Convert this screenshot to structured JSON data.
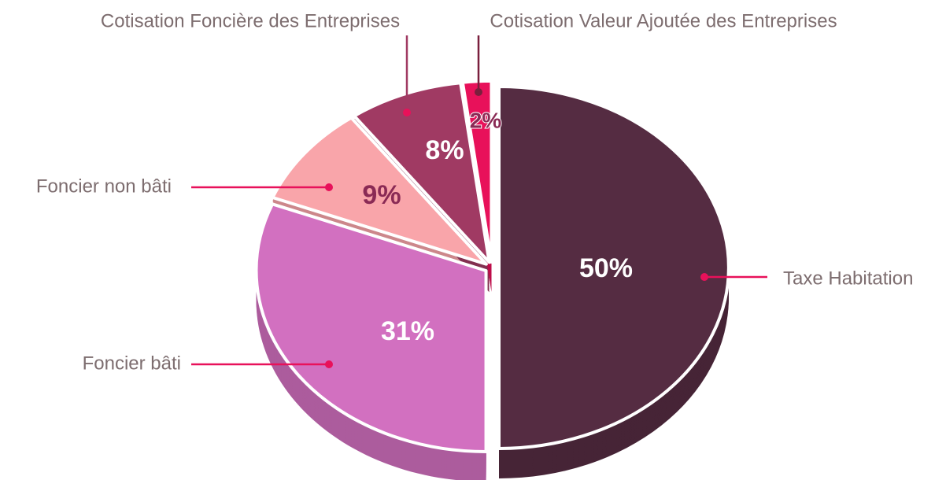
{
  "chart_data": {
    "type": "pie",
    "categories": [
      "Taxe Habitation",
      "Foncier bâti",
      "Foncier non bâti",
      "Cotisation Foncière des Entreprises",
      "Cotisation Valeur Ajoutée des Entreprises"
    ],
    "values": [
      50,
      31,
      9,
      8,
      2
    ],
    "value_labels": [
      "50%",
      "31%",
      "9%",
      "8%",
      "2%"
    ],
    "colors": [
      "#552c42",
      "#d270c0",
      "#f9a5aa",
      "#a03a63",
      "#e8115a"
    ]
  }
}
